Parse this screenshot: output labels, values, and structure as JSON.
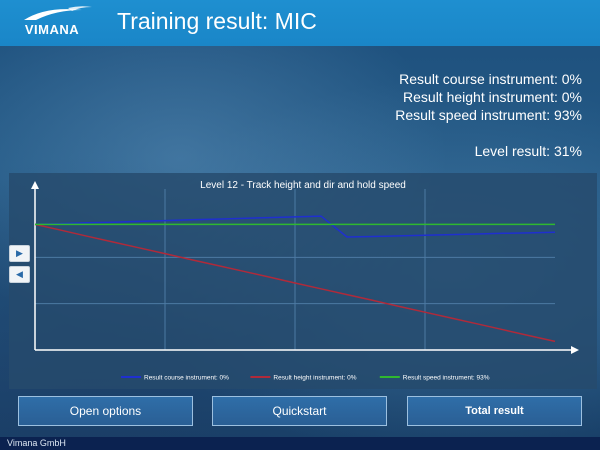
{
  "header": {
    "logo_text": "VIMANA",
    "title": "Training result: MIC"
  },
  "results": {
    "course": "Result course instrument: 0%",
    "height": "Result height instrument: 0%",
    "speed": "Result speed instrument: 93%",
    "level": "Level result: 31%"
  },
  "nav": {
    "next_icon": "play-right-icon",
    "prev_icon": "play-left-icon"
  },
  "chart_data": {
    "type": "line",
    "title": "Level 12 - Track height and dir and hold speed",
    "x": [
      0,
      1,
      2,
      3,
      4,
      5,
      6,
      7,
      8,
      9,
      10,
      11,
      12,
      13,
      14,
      15,
      16,
      17,
      18,
      19,
      20
    ],
    "ylim": [
      0,
      100
    ],
    "grid": true,
    "legend": "bottom",
    "series": [
      {
        "name": "Result course instrument: 0%",
        "color": "#1f2fd0",
        "values": [
          80,
          80.5,
          81,
          81.4,
          81.9,
          82.4,
          82.9,
          83.4,
          83.8,
          84.3,
          84.8,
          85.3,
          72,
          72.3,
          72.7,
          73.1,
          73.5,
          73.9,
          74.3,
          74.6,
          75
        ]
      },
      {
        "name": "Result height instrument: 0%",
        "color": "#b02a3a",
        "values": [
          80,
          76.3,
          72.5,
          68.8,
          65.1,
          61.4,
          57.6,
          53.9,
          50.2,
          46.5,
          42.7,
          39,
          35.3,
          31.6,
          27.8,
          24.1,
          20.4,
          16.7,
          12.9,
          9.2,
          5.5
        ]
      },
      {
        "name": "Result speed instrument: 93%",
        "color": "#2fb82f",
        "values": [
          80,
          80,
          80,
          80,
          80,
          80,
          80,
          80,
          80,
          80,
          80,
          80,
          80,
          80,
          80,
          80,
          80,
          80,
          80,
          80,
          80
        ]
      }
    ]
  },
  "buttons": {
    "open_options": "Open options",
    "quickstart": "Quickstart",
    "total_result": "Total result"
  },
  "footer": {
    "company": "Vimana GmbH"
  }
}
